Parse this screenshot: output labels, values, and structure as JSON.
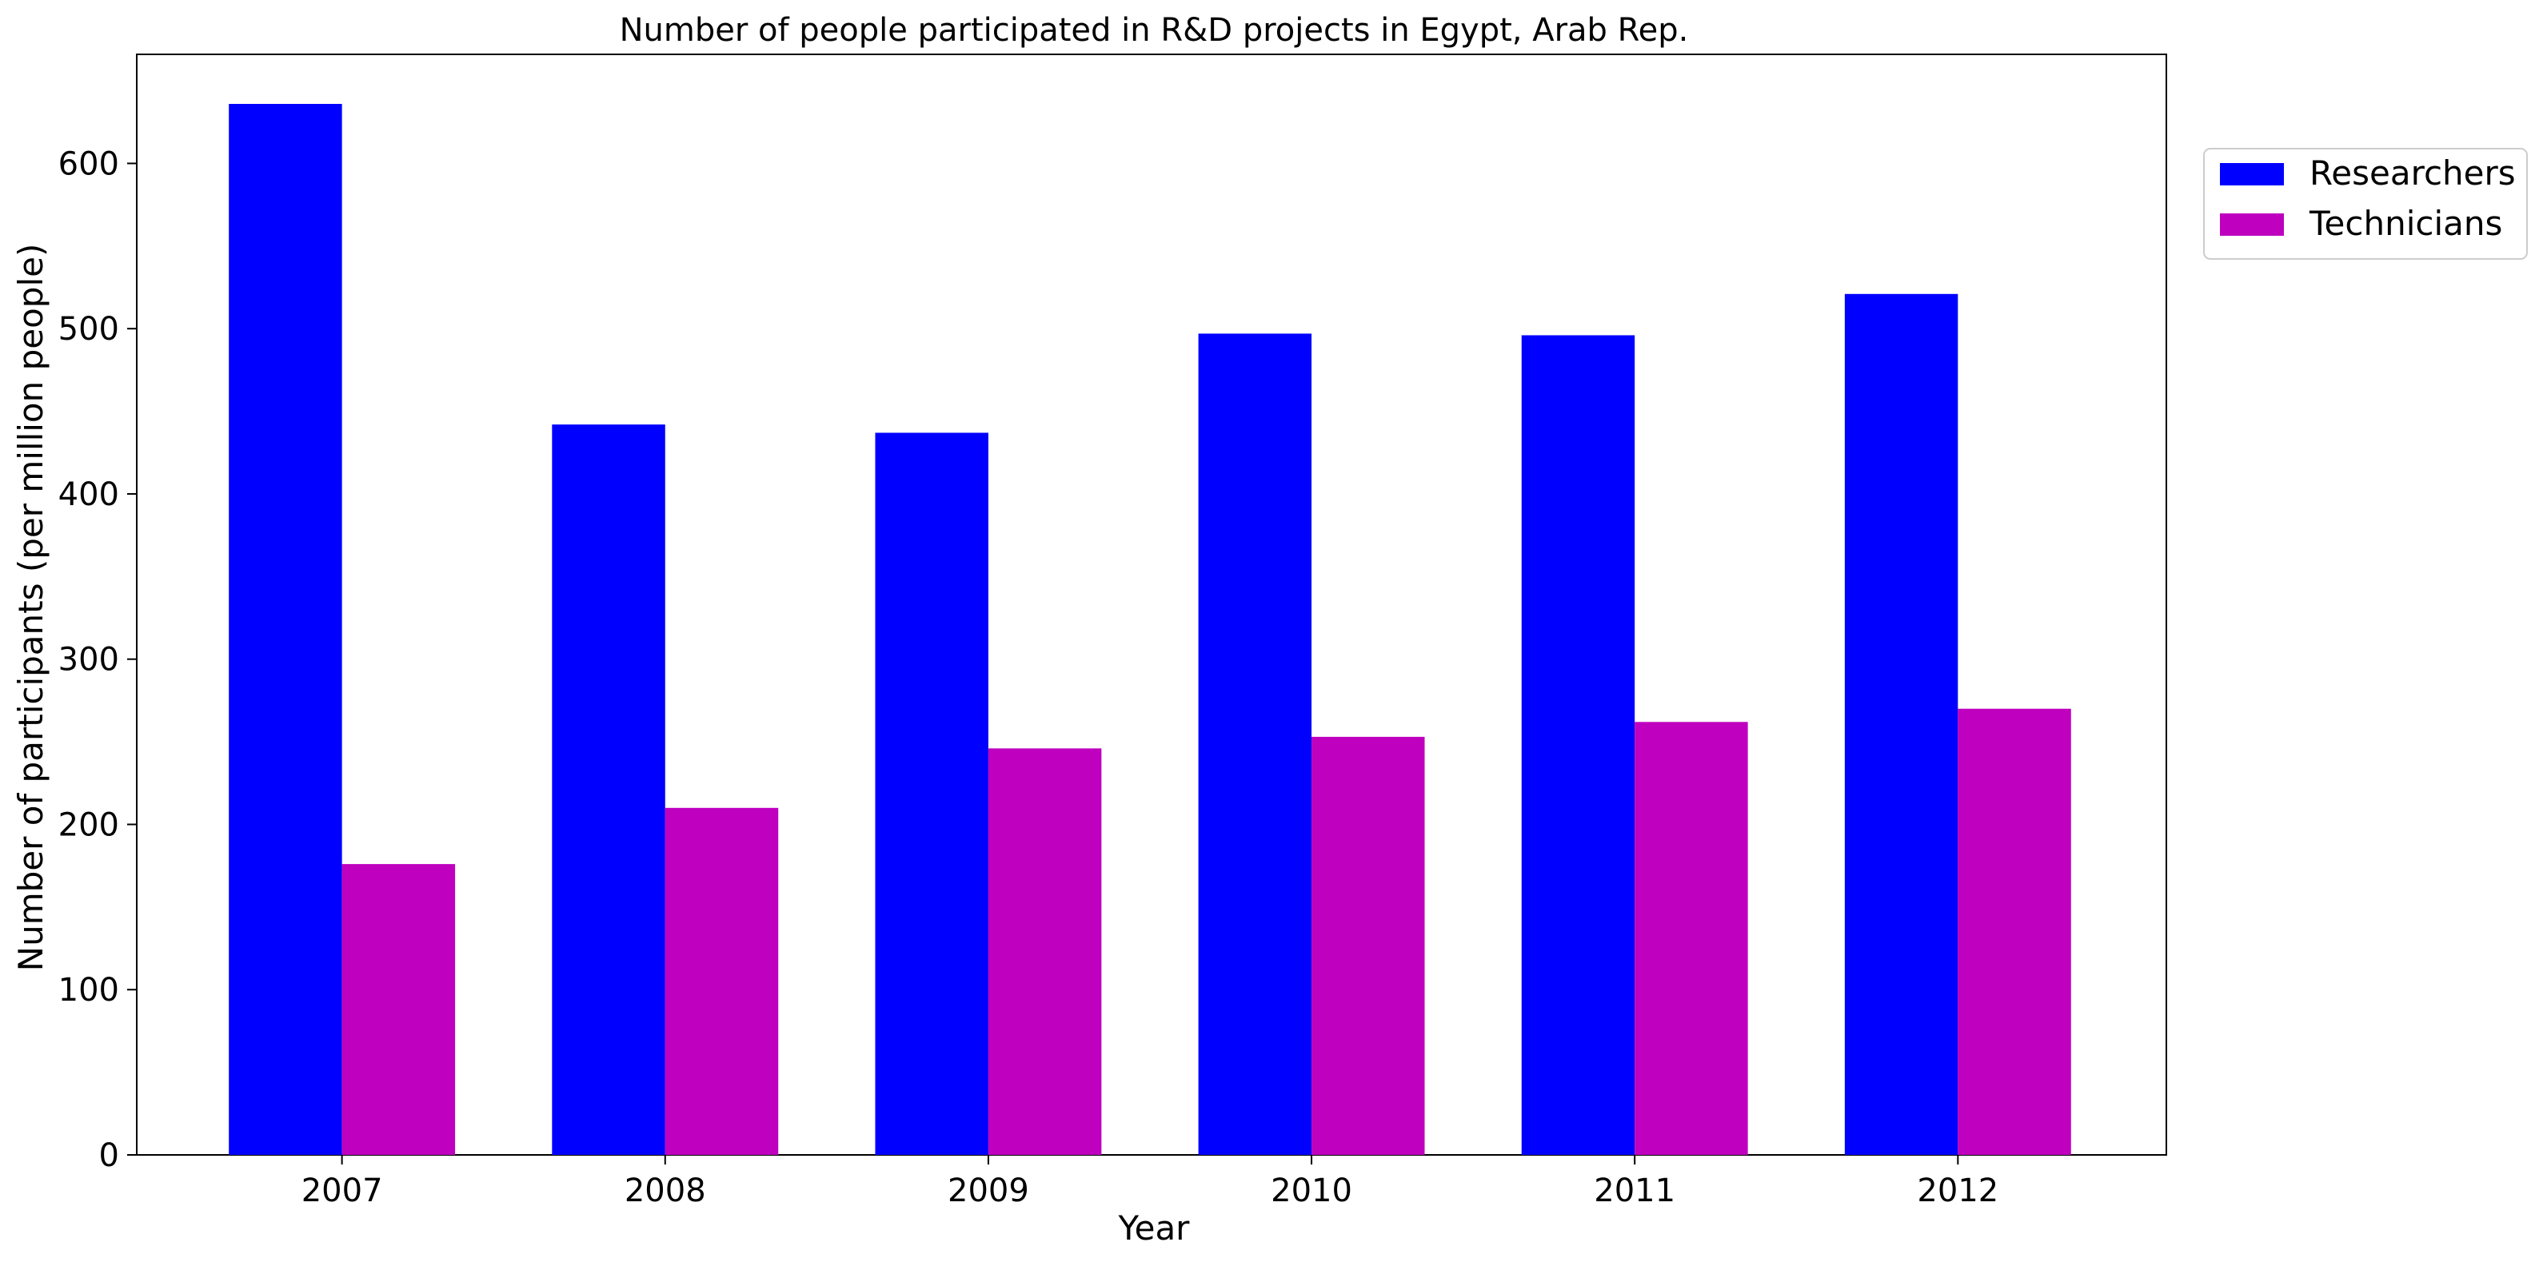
{
  "chart_data": {
    "type": "bar",
    "title": "Number of people participated in R&D projects in Egypt, Arab Rep.",
    "xlabel": "Year",
    "ylabel": "Number of participants (per million people)",
    "categories": [
      "2007",
      "2008",
      "2009",
      "2010",
      "2011",
      "2012"
    ],
    "series": [
      {
        "name": "Researchers",
        "color": "#0000ff",
        "values": [
          636,
          442,
          437,
          497,
          496,
          521
        ]
      },
      {
        "name": "Technicians",
        "color": "#bf00bf",
        "values": [
          176,
          210,
          246,
          253,
          262,
          270
        ]
      }
    ],
    "ylim": [
      0,
      666
    ],
    "yticks": [
      0,
      100,
      200,
      300,
      400,
      500,
      600
    ],
    "ytick_labels": [
      "0",
      "100",
      "200",
      "300",
      "400",
      "500",
      "600"
    ],
    "grid": false,
    "legend_position": "outside-top-right"
  }
}
